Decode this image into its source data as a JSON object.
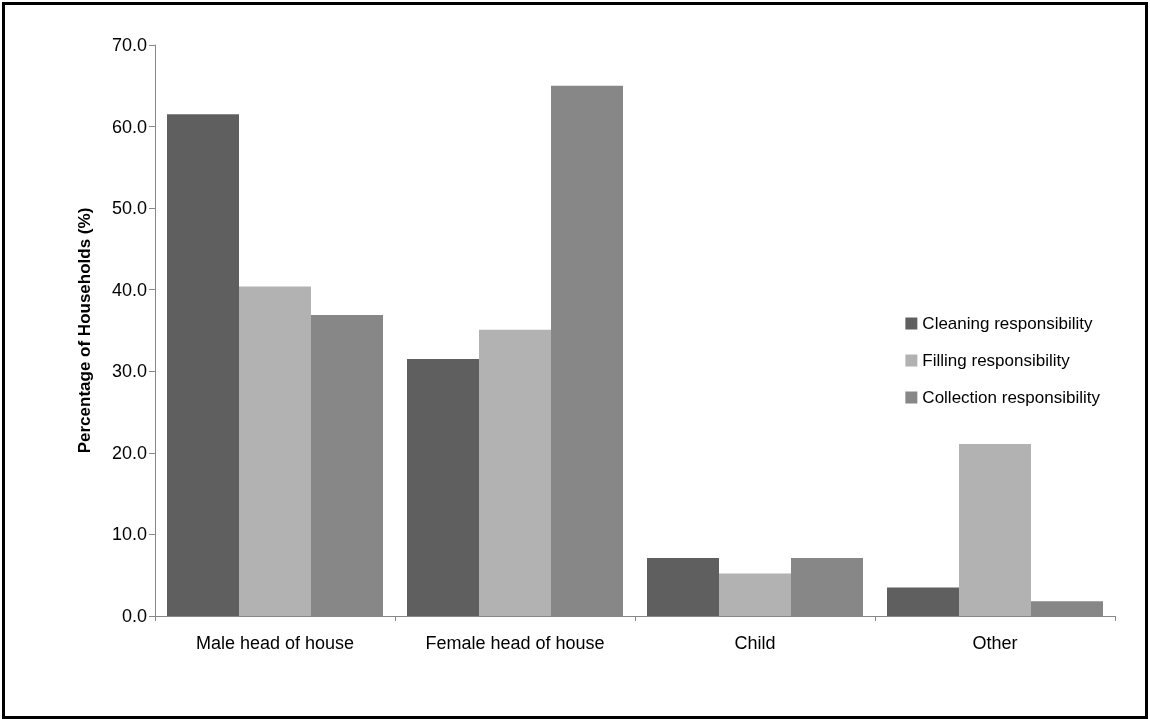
{
  "chart_data": {
    "type": "bar",
    "ylabel": "Percentage of Households (%)",
    "categories": [
      "Male head of house",
      "Female head of house",
      "Child",
      "Other"
    ],
    "series": [
      {
        "name": "Cleaning responsibility",
        "color": "#5f5f5f",
        "values": [
          61.5,
          31.5,
          7.1,
          3.5
        ]
      },
      {
        "name": "Filling responsibility",
        "color": "#b2b2b2",
        "values": [
          40.4,
          35.1,
          5.2,
          21.1
        ]
      },
      {
        "name": "Collection responsibility",
        "color": "#878787",
        "values": [
          36.9,
          65.0,
          7.1,
          1.8
        ]
      }
    ],
    "ylim": [
      0,
      70
    ],
    "yticks": [
      {
        "value": 0,
        "label": "0.0"
      },
      {
        "value": 10,
        "label": "10.0"
      },
      {
        "value": 20,
        "label": "20.0"
      },
      {
        "value": 30,
        "label": "30.0"
      },
      {
        "value": 40,
        "label": "40.0"
      },
      {
        "value": 50,
        "label": "50.0"
      },
      {
        "value": 60,
        "label": "60.0"
      },
      {
        "value": 70,
        "label": "70.0"
      }
    ],
    "grid": false,
    "legend": "right"
  }
}
